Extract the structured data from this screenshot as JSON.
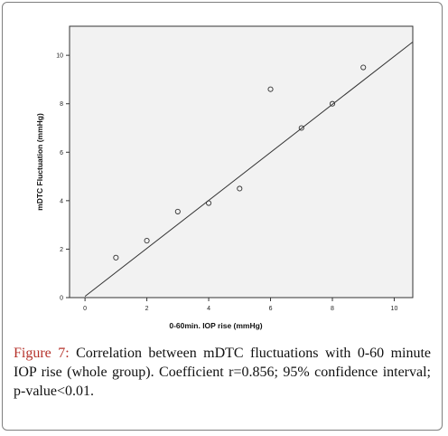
{
  "caption": {
    "figure_label": "Figure 7:",
    "text": "Correlation between mDTC fluctuations with 0-60 minute IOP rise (whole group). Coefficient r=0.856; 95% confidence interval; p-value<0.01."
  },
  "colors": {
    "plot_background": "#f2f2f2",
    "figure_label": "#b5322b",
    "marker_stroke": "#333333",
    "fit_line": "#333333"
  },
  "chart_data": {
    "type": "scatter",
    "title": "",
    "xlabel": "0-60min. IOP rise (mmHg)",
    "ylabel": "mDTC Fluctuation (mmHg)",
    "xlim": [
      -0.5,
      10.6
    ],
    "ylim": [
      0,
      11.2
    ],
    "xticks": [
      0,
      2,
      4,
      6,
      8,
      10
    ],
    "yticks": [
      0,
      2,
      4,
      6,
      8,
      10
    ],
    "grid": false,
    "legend": "none",
    "marker": "open-circle",
    "points": [
      {
        "x": 1,
        "y": 1.65
      },
      {
        "x": 2,
        "y": 2.35
      },
      {
        "x": 3,
        "y": 3.55
      },
      {
        "x": 4,
        "y": 3.9
      },
      {
        "x": 5,
        "y": 4.5
      },
      {
        "x": 6,
        "y": 8.6
      },
      {
        "x": 7,
        "y": 7.0
      },
      {
        "x": 8,
        "y": 8.0
      },
      {
        "x": 9,
        "y": 9.5
      }
    ],
    "fit_line": {
      "from": [
        0,
        0.05
      ],
      "to": [
        10.6,
        10.55
      ]
    }
  }
}
